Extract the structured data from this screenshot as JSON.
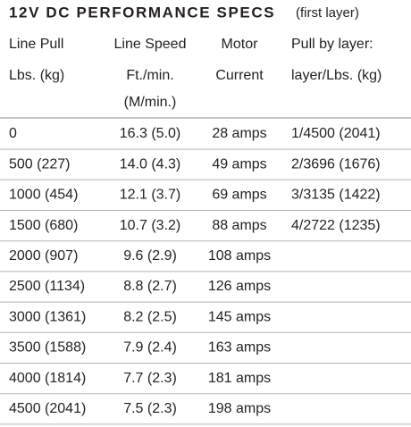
{
  "title": "12V DC PERFORMANCE SPECS",
  "subtitle": "(first layer)",
  "header": {
    "rows": [
      [
        "Line Pull",
        "Line Speed",
        "Motor",
        "Pull by layer:"
      ],
      [
        "Lbs. (kg)",
        "Ft./min.",
        "Current",
        "layer/Lbs. (kg)"
      ]
    ],
    "speed_metric": "(M/min.)"
  },
  "table": {
    "rows": [
      [
        "0",
        "16.3 (5.0)",
        "28 amps",
        "1/4500 (2041)"
      ],
      [
        "500 (227)",
        "14.0 (4.3)",
        "49 amps",
        "2/3696 (1676)"
      ],
      [
        "1000 (454)",
        "12.1 (3.7)",
        "69 amps",
        "3/3135 (1422)"
      ],
      [
        "1500 (680)",
        "10.7 (3.2)",
        "88 amps",
        "4/2722 (1235)"
      ],
      [
        "2000 (907)",
        "9.6 (2.9)",
        "108 amps"
      ],
      [
        "2500 (1134)",
        "8.8 (2.7)",
        "126 amps"
      ],
      [
        "3000 (1361)",
        "8.2 (2.5)",
        "145 amps"
      ],
      [
        "3500 (1588)",
        "7.9 (2.4)",
        "163 amps"
      ],
      [
        "4000 (1814)",
        "7.7 (2.3)",
        "181 amps"
      ],
      [
        "4500 (2041)",
        "7.5 (2.3)",
        "198 amps"
      ]
    ]
  }
}
